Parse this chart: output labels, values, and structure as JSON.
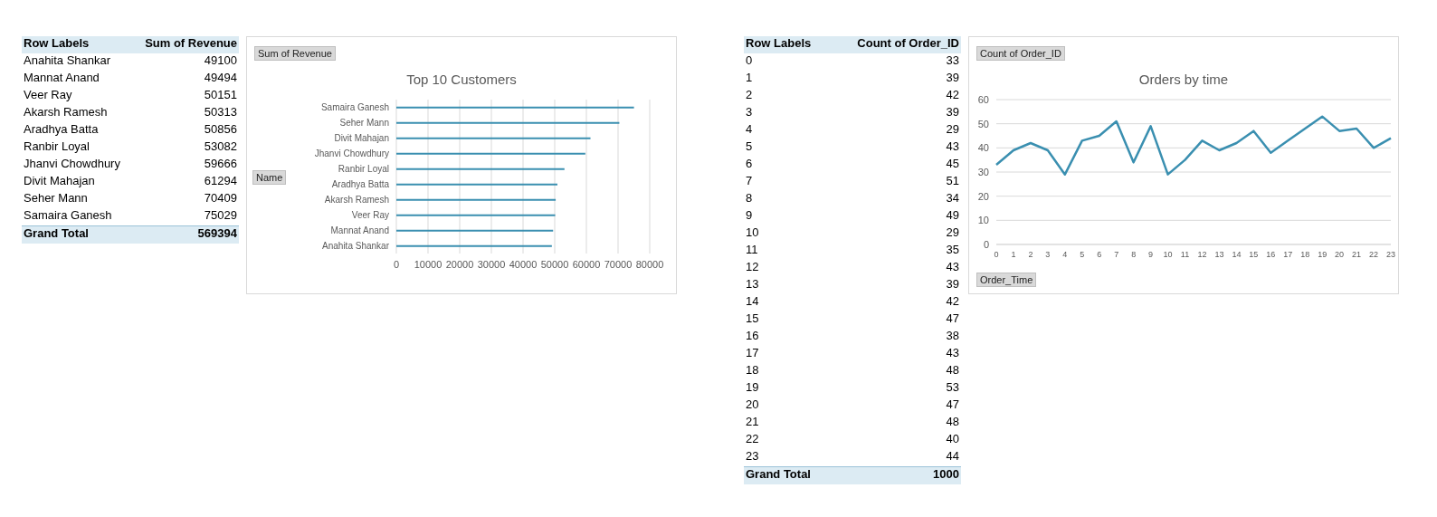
{
  "chart_data": [
    {
      "type": "bar",
      "orientation": "horizontal",
      "title": "Top 10 Customers",
      "categories": [
        "Samaira Ganesh",
        "Seher Mann",
        "Divit Mahajan",
        "Jhanvi Chowdhury",
        "Ranbir Loyal",
        "Aradhya Batta",
        "Akarsh Ramesh",
        "Veer Ray",
        "Mannat Anand",
        "Anahita Shankar"
      ],
      "values": [
        75029,
        70409,
        61294,
        59666,
        53082,
        50856,
        50313,
        50151,
        49494,
        49100
      ],
      "color": "#3a8fb0",
      "xlim": [
        0,
        80000
      ],
      "xticks": [
        0,
        10000,
        20000,
        30000,
        40000,
        50000,
        60000,
        70000,
        80000
      ],
      "grid": "x",
      "annotations": [
        "Row Labels",
        "Sum of Revenue",
        "Anahita Shankar",
        "49100",
        "Mannat Anand",
        "49494",
        "Veer Ray",
        "50151",
        "Akarsh Ramesh",
        "50313",
        "Aradhya Batta",
        "50856",
        "Ranbir Loyal",
        "53082",
        "Jhanvi Chowdhury",
        "59666",
        "Divit Mahajan",
        "61294",
        "Seher Mann",
        "70409",
        "Samaira Ganesh",
        "75029",
        "Grand Total",
        "569394",
        "Sum of Revenue",
        "Name"
      ]
    },
    {
      "type": "line",
      "title": "Orders by time",
      "categories": [
        "0",
        "1",
        "2",
        "3",
        "4",
        "5",
        "6",
        "7",
        "8",
        "9",
        "10",
        "11",
        "12",
        "13",
        "14",
        "15",
        "16",
        "17",
        "18",
        "19",
        "20",
        "21",
        "22",
        "23"
      ],
      "values": [
        33,
        39,
        42,
        39,
        29,
        43,
        45,
        51,
        34,
        49,
        29,
        35,
        43,
        39,
        42,
        47,
        38,
        43,
        48,
        53,
        47,
        48,
        40,
        44
      ],
      "color": "#3a8fb0",
      "ylim": [
        0,
        60
      ],
      "yticks": [
        0,
        10,
        20,
        30,
        40,
        50,
        60
      ],
      "grid": "y",
      "marker": "none",
      "annotations": [
        "Row Labels",
        "Count of Order_ID",
        "33",
        "39",
        "42",
        "39",
        "29",
        "43",
        "45",
        "51",
        "34",
        "49",
        "29",
        "35",
        "43",
        "39",
        "42",
        "47",
        "38",
        "43",
        "48",
        "53",
        "47",
        "48",
        "40",
        "44",
        "Grand Total",
        "1000",
        "Count of Order_ID",
        "Order_Time"
      ]
    }
  ]
}
